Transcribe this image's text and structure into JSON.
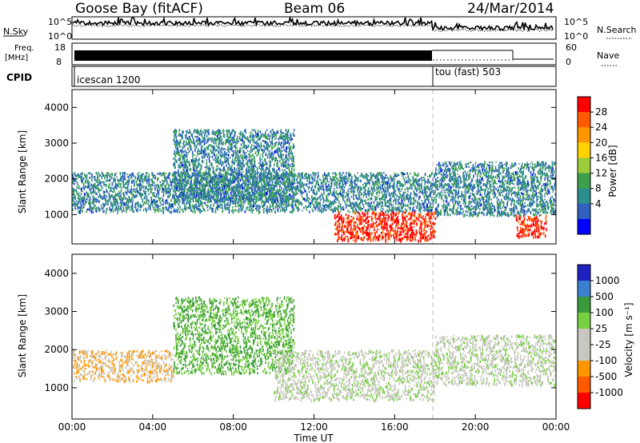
{
  "header": {
    "station": "Goose Bay (fitACF)",
    "beam": "Beam 06",
    "date": "24/Mar/2014"
  },
  "strip_panels": {
    "noise": {
      "left_label": "N.Sky",
      "right_label": "N.Search",
      "left_ticks": [
        "10^5",
        "10^0"
      ],
      "right_ticks": [
        "10^5",
        "10^0"
      ]
    },
    "freq": {
      "left_label_1": "Freq.",
      "left_label_2": "[MHz]",
      "right_label": "Nave",
      "left_ticks": [
        "18",
        "8"
      ],
      "right_ticks": [
        "60",
        "0"
      ]
    },
    "cpid": {
      "label": "CPID",
      "segments": [
        "icescan 1200",
        "tou (fast) 503"
      ]
    }
  },
  "axes": {
    "y_label": "Slant Range [km]",
    "y_ticks": [
      "4000",
      "3000",
      "2000",
      "1000"
    ],
    "x_ticks": [
      "00:00",
      "04:00",
      "08:00",
      "12:00",
      "16:00",
      "20:00",
      "00:00"
    ],
    "x_label": "Time UT"
  },
  "colorbars": {
    "power": {
      "label": "Power [dB]",
      "ticks": [
        "28",
        "24",
        "20",
        "16",
        "12",
        "8",
        "4"
      ],
      "colors": [
        "#ff0000",
        "#ff5a00",
        "#ff9600",
        "#ffd200",
        "#9ccc3a",
        "#3ca04a",
        "#2c8f8f",
        "#3060c0",
        "#0000ff"
      ]
    },
    "velocity": {
      "label": "Velocity [m s⁻¹]",
      "ticks": [
        "1000",
        "500",
        "100",
        "25",
        "-25",
        "-100",
        "-500",
        "-1000"
      ],
      "colors": [
        "#2020c0",
        "#3a80d0",
        "#3a9a3a",
        "#78d040",
        "#c8c8c0",
        "#c8c8c0",
        "#ff9600",
        "#ff5a00",
        "#ff0000"
      ]
    }
  },
  "chart_data": [
    {
      "type": "heatmap",
      "title": "Power",
      "x": [
        "00:00",
        "04:00",
        "08:00",
        "12:00",
        "16:00",
        "20:00",
        "00:00"
      ],
      "y_range_km": [
        180,
        4500
      ],
      "xlabel": "Time UT",
      "ylabel": "Slant Range [km]",
      "color_scale": "Power [dB]",
      "color_range": [
        0,
        30
      ],
      "features": [
        {
          "time_range": [
            "00:00",
            "18:00"
          ],
          "range_km": [
            1100,
            2200
          ],
          "value": 8
        },
        {
          "time_range": [
            "05:00",
            "11:00"
          ],
          "range_km": [
            1400,
            3400
          ],
          "value": 8
        },
        {
          "time_range": [
            "13:00",
            "18:00"
          ],
          "range_km": [
            300,
            1100
          ],
          "value": 28
        },
        {
          "time_range": [
            "18:00",
            "24:00"
          ],
          "range_km": [
            1000,
            2500
          ],
          "value": 8
        },
        {
          "time_range": [
            "22:00",
            "23:30"
          ],
          "range_km": [
            400,
            1000
          ],
          "value": 28
        }
      ]
    },
    {
      "type": "heatmap",
      "title": "Velocity",
      "x": [
        "00:00",
        "04:00",
        "08:00",
        "12:00",
        "16:00",
        "20:00",
        "00:00"
      ],
      "y_range_km": [
        180,
        4500
      ],
      "xlabel": "Time UT",
      "ylabel": "Slant Range [km]",
      "color_scale": "Velocity [m s⁻¹]",
      "color_range": [
        -1000,
        1000
      ],
      "features": [
        {
          "time_range": [
            "00:00",
            "05:00"
          ],
          "range_km": [
            1200,
            2000
          ],
          "value": -100
        },
        {
          "time_range": [
            "05:00",
            "11:00"
          ],
          "range_km": [
            1400,
            3400
          ],
          "value": 100
        },
        {
          "time_range": [
            "10:00",
            "18:00"
          ],
          "range_km": [
            700,
            2000
          ],
          "value": 0
        },
        {
          "time_range": [
            "18:00",
            "24:00"
          ],
          "range_km": [
            1100,
            2400
          ],
          "value": 0
        }
      ]
    }
  ]
}
